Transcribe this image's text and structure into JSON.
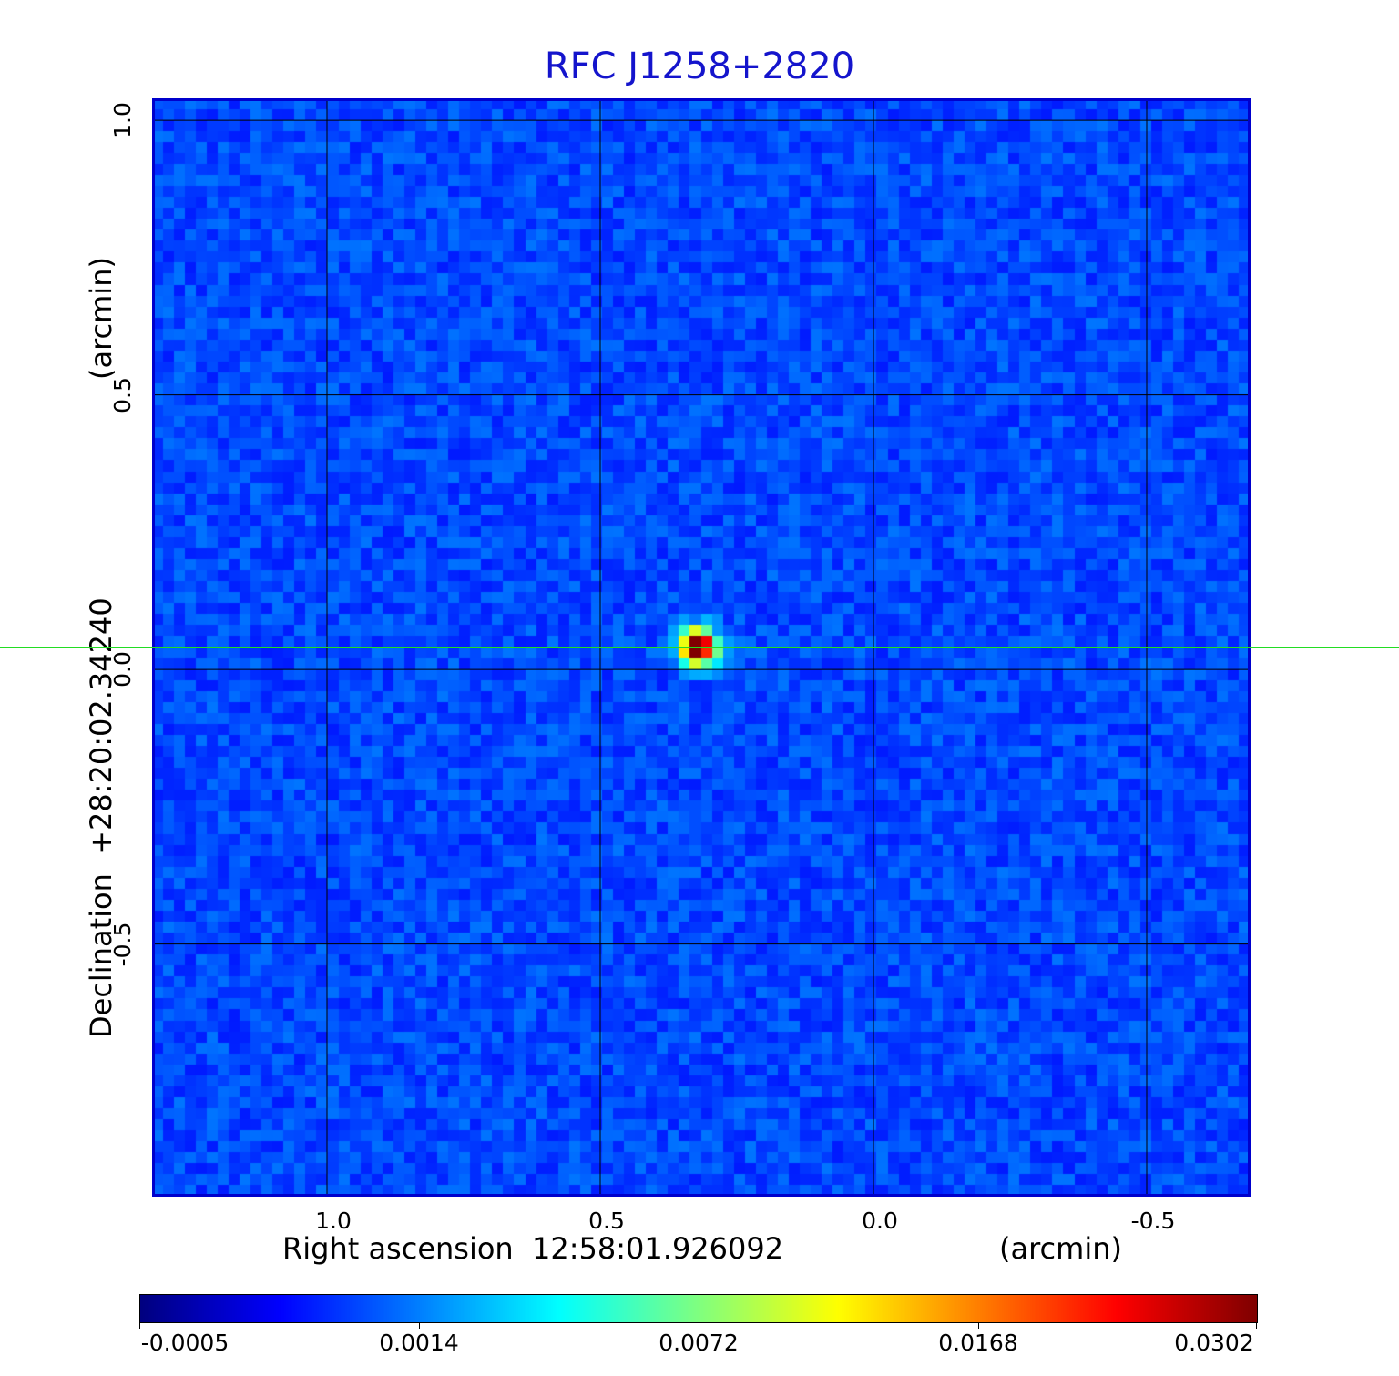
{
  "chart_data": {
    "type": "heatmap",
    "title": "RFC J1258+2820",
    "xlabel": "Right ascension  12:58:01.926092",
    "xunit": "(arcmin)",
    "ylabel": "Declination  +28:20:02.34240",
    "yunit": "(arcmin)",
    "x_axis_reversed": true,
    "xlim": [
      1.32,
      -0.69
    ],
    "ylim": [
      -0.96,
      1.04
    ],
    "x_ticks": [
      {
        "label": "1.0",
        "value": 1.0
      },
      {
        "label": "0.5",
        "value": 0.5
      },
      {
        "label": "0.0",
        "value": 0.0
      },
      {
        "label": "-0.5",
        "value": -0.5
      }
    ],
    "y_ticks": [
      {
        "label": "1.0",
        "value": 1.0
      },
      {
        "label": "0.5",
        "value": 0.5
      },
      {
        "label": "0.0",
        "value": 0.0
      },
      {
        "label": "-0.5",
        "value": -0.5
      }
    ],
    "grid": true,
    "crosshair": {
      "x": 0.32,
      "y": 0.04
    },
    "source_peak": {
      "x": 0.32,
      "y": 0.04,
      "value": 0.0302
    },
    "background_noise_range": [
      -0.0005,
      0.0014
    ],
    "colorbar": {
      "colormap": "jet",
      "ticks": [
        "-0.0005",
        "0.0014",
        "0.0072",
        "0.0168",
        "0.0302"
      ],
      "tick_fractions": [
        0.0,
        0.25,
        0.5,
        0.75,
        1.0
      ]
    }
  },
  "colors": {
    "title": "#1414cc",
    "frame": "#0000cc",
    "grid": "#000000",
    "crosshair": "#22dd22"
  }
}
